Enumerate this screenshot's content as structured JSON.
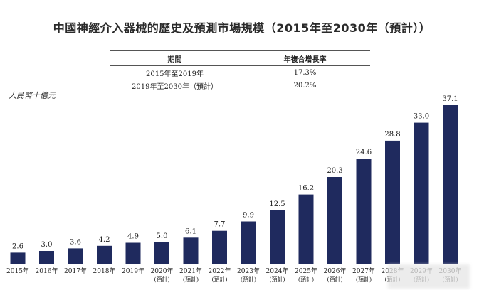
{
  "title": "中國神經介入器械的歷史及預測市場規模（2015年至2030年（預計））",
  "table": {
    "headers": [
      "期間",
      "年複合增長率"
    ],
    "rows": [
      [
        "2015年至2019年",
        "17.3%"
      ],
      [
        "2019年至2030年（預計）",
        "20.2%"
      ]
    ]
  },
  "chart_data": {
    "type": "bar",
    "title": "中國神經介入器械的歷史及預測市場規模（2015年至2030年（預計））",
    "ylabel": "人民幣十億元",
    "xlabel": "",
    "categories": [
      "2015年",
      "2016年",
      "2017年",
      "2018年",
      "2019年",
      "2020年",
      "2021年",
      "2022年",
      "2023年",
      "2024年",
      "2025年",
      "2026年",
      "2027年",
      "2028年",
      "2029年",
      "2030年"
    ],
    "category_notes": [
      "",
      "",
      "",
      "",
      "",
      "(預計)",
      "(預計)",
      "(預計)",
      "(預計)",
      "(預計)",
      "(預計)",
      "(預計)",
      "(預計)",
      "(預計)",
      "(預計)",
      "(預計)"
    ],
    "values": [
      2.6,
      3.0,
      3.6,
      4.2,
      4.9,
      5.0,
      6.1,
      7.7,
      9.9,
      12.5,
      16.2,
      20.3,
      24.6,
      28.8,
      33.0,
      37.1
    ],
    "value_labels": [
      "2.6",
      "3.0",
      "3.6",
      "4.2",
      "4.9",
      "5.0",
      "6.1",
      "7.7",
      "9.9",
      "12.5",
      "16.2",
      "20.3",
      "24.6",
      "28.8",
      "33.0",
      "37.1"
    ],
    "ylim": [
      0,
      40
    ],
    "grid": false,
    "bar_color": "#1f2a5e"
  }
}
